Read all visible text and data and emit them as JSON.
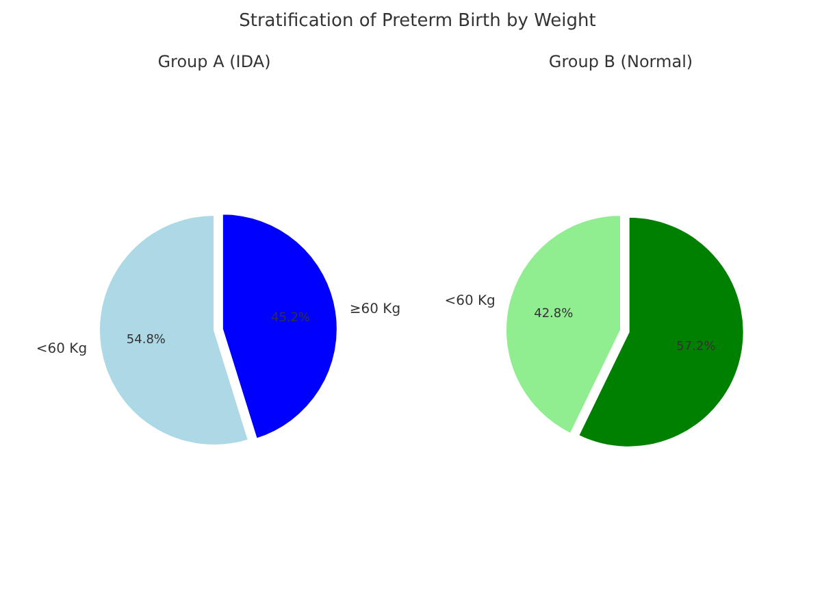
{
  "chart_data": [
    {
      "type": "pie",
      "title": "Stratification of Preterm Birth by Weight",
      "subtitle": "Group A (IDA)",
      "categories": [
        "≥60 Kg",
        "<60 Kg"
      ],
      "values": [
        45.2,
        54.8
      ],
      "value_labels": [
        "45.2%",
        "54.8%"
      ],
      "colors": [
        "#0000ff",
        "#add8e6"
      ],
      "legend": false
    },
    {
      "type": "pie",
      "title": "Group B (Normal)",
      "categories": [
        null,
        "<60 Kg"
      ],
      "values": [
        57.2,
        42.8
      ],
      "value_labels": [
        "57.2%",
        "42.8%"
      ],
      "colors": [
        "#008000",
        "#90ee90"
      ],
      "legend": false
    }
  ]
}
